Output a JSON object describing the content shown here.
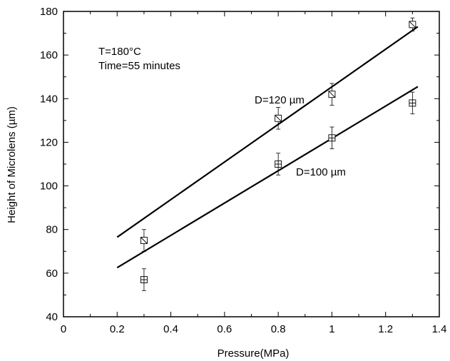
{
  "chart_data": {
    "type": "scatter",
    "xlabel": "Pressure(MPa)",
    "ylabel": "Height of Microlens (µm)",
    "xlim": [
      0,
      1.4
    ],
    "ylim": [
      40,
      180
    ],
    "x_ticks": [
      "0",
      "0.2",
      "0.4",
      "0.6",
      "0.8",
      "1",
      "1.2",
      "1.4"
    ],
    "y_ticks": [
      "40",
      "60",
      "80",
      "100",
      "120",
      "140",
      "160",
      "180"
    ],
    "grid": false,
    "legend": "none",
    "annotations": {
      "temperature": "T=180°C",
      "time": "Time=55 minutes",
      "label_120": "D=120 µm",
      "label_100": "D=100 µm"
    },
    "series": [
      {
        "marker": "square-diagonal",
        "points": [
          {
            "x": 0.3,
            "y": 75,
            "err": 5
          },
          {
            "x": 0.8,
            "y": 131,
            "err": 5
          },
          {
            "x": 1.0,
            "y": 142,
            "err": 5
          },
          {
            "x": 1.3,
            "y": 174,
            "err": 3
          }
        ],
        "fit": {
          "x": [
            0.2,
            1.32
          ],
          "y": [
            76.5,
            173
          ]
        }
      },
      {
        "marker": "square-cross",
        "points": [
          {
            "x": 0.3,
            "y": 57,
            "err": 5
          },
          {
            "x": 0.8,
            "y": 110,
            "err": 5
          },
          {
            "x": 1.0,
            "y": 122,
            "err": 5
          },
          {
            "x": 1.3,
            "y": 138,
            "err": 5
          }
        ],
        "fit": {
          "x": [
            0.2,
            1.32
          ],
          "y": [
            62.5,
            145.5
          ]
        }
      }
    ]
  }
}
